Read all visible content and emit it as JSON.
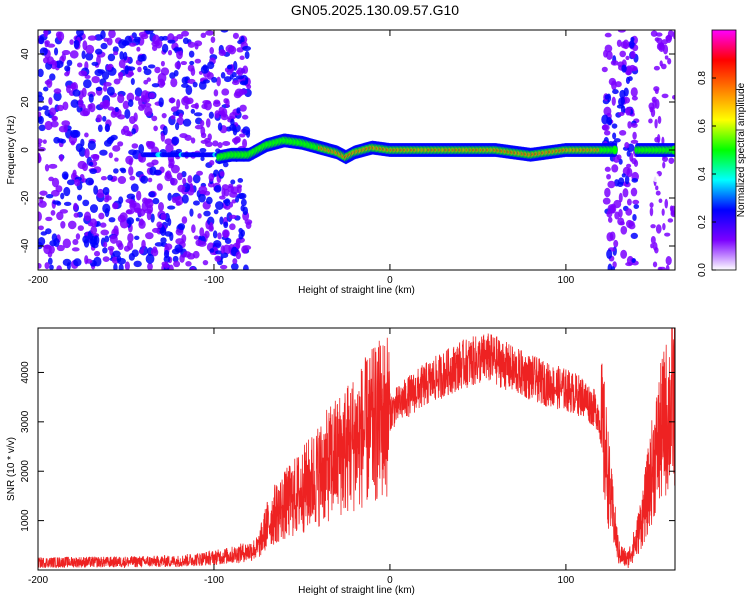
{
  "title": "GN05.2025.130.09.57.G10",
  "chart_data": [
    {
      "type": "heatmap",
      "xlabel": "Height of straight line (km)",
      "ylabel": "Frequency (Hz)",
      "xlim": [
        -200,
        162
      ],
      "ylim": [
        -50,
        50
      ],
      "x_ticks": [
        -200,
        -100,
        0,
        100
      ],
      "y_ticks": [
        -40,
        -20,
        0,
        20,
        40
      ],
      "colorbar": {
        "label": "Normalized spectral amplitude",
        "range": [
          0.0,
          1.0
        ],
        "ticks": [
          "0.0",
          "0.2",
          "0.4",
          "0.6",
          "0.8"
        ],
        "colormap": [
          "#ffffff",
          "#7b00ff",
          "#0000ff",
          "#00ffff",
          "#00ff00",
          "#ffff00",
          "#ff8000",
          "#ff0000",
          "#ff00ff"
        ]
      },
      "ridge_frequency": {
        "x": [
          -97,
          -90,
          -80,
          -70,
          -60,
          -50,
          -40,
          -30,
          -25,
          -20,
          -10,
          0,
          20,
          40,
          60,
          80,
          100,
          120,
          125,
          135,
          145,
          162
        ],
        "y": [
          -3,
          -2,
          -2,
          2,
          4,
          3,
          1,
          -1,
          -3,
          -1,
          1,
          0,
          0,
          0,
          0,
          -2,
          0,
          0,
          0,
          0,
          0,
          0
        ]
      },
      "grid": false
    },
    {
      "type": "line",
      "xlabel": "Height of straight line (km)",
      "ylabel": "SNR (10 * v/v)",
      "xlim": [
        -200,
        162
      ],
      "ylim": [
        0,
        4900
      ],
      "x_ticks": [
        -200,
        -100,
        0,
        100
      ],
      "y_ticks": [
        1000,
        2000,
        3000,
        4000
      ],
      "series": [
        {
          "color": "#ee2222",
          "x": [
            -200,
            -180,
            -160,
            -140,
            -120,
            -100,
            -90,
            -80,
            -75,
            -70,
            -65,
            -60,
            -50,
            -40,
            -30,
            -20,
            -10,
            0,
            10,
            20,
            30,
            40,
            50,
            55,
            60,
            70,
            80,
            90,
            100,
            110,
            118,
            122,
            126,
            130,
            135,
            140,
            145,
            150,
            155,
            162
          ],
          "values": [
            150,
            160,
            160,
            170,
            180,
            250,
            300,
            380,
            450,
            900,
            1150,
            1300,
            1600,
            1950,
            2300,
            2600,
            2900,
            3200,
            3500,
            3750,
            3950,
            4150,
            4250,
            4300,
            4250,
            4050,
            3900,
            3750,
            3650,
            3500,
            3200,
            2500,
            1300,
            350,
            200,
            600,
            1300,
            2200,
            2900,
            3500
          ]
        }
      ],
      "grid": false
    }
  ]
}
